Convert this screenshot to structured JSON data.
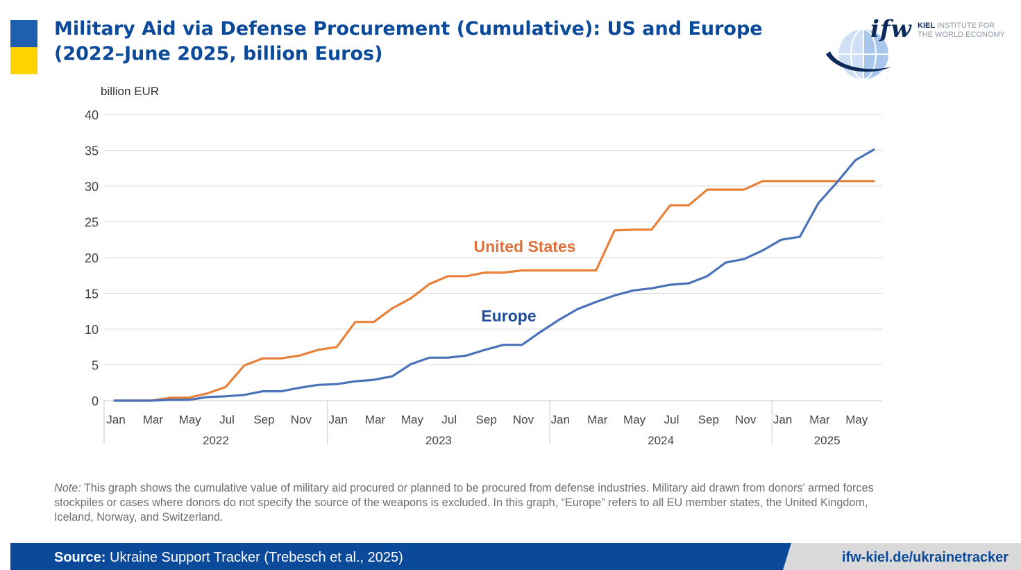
{
  "header": {
    "title_line1": "Military Aid via Defense Procurement (Cumulative): US and Europe",
    "title_line2": "(2022–June 2025, billion Euros)"
  },
  "logo": {
    "wordmark": "ifw",
    "institute_line1": "KIEL",
    "institute_line1_rest": " INSTITUTE FOR",
    "institute_line2": "THE WORLD ECONOMY"
  },
  "colors": {
    "title": "#0b4a9a",
    "us": "#e8803a",
    "us_label": "#e0703a",
    "europe": "#4a72b8",
    "europe_label": "#1f4f9c",
    "grid": "#d9d9d9",
    "flag_blue": "#1f5fb0",
    "flag_yellow": "#ffd200"
  },
  "chart_data": {
    "type": "line",
    "ylabel": "billion EUR",
    "ylim": [
      0,
      40
    ],
    "yticks": [
      0,
      5,
      10,
      15,
      20,
      25,
      30,
      35,
      40
    ],
    "x": [
      "Jan 2022",
      "Feb 2022",
      "Mar 2022",
      "Apr 2022",
      "May 2022",
      "Jun 2022",
      "Jul 2022",
      "Aug 2022",
      "Sep 2022",
      "Oct 2022",
      "Nov 2022",
      "Dec 2022",
      "Jan 2023",
      "Feb 2023",
      "Mar 2023",
      "Apr 2023",
      "May 2023",
      "Jun 2023",
      "Jul 2023",
      "Aug 2023",
      "Sep 2023",
      "Oct 2023",
      "Nov 2023",
      "Dec 2023",
      "Jan 2024",
      "Feb 2024",
      "Mar 2024",
      "Apr 2024",
      "May 2024",
      "Jun 2024",
      "Jul 2024",
      "Aug 2024",
      "Sep 2024",
      "Oct 2024",
      "Nov 2024",
      "Dec 2024",
      "Jan 2025",
      "Feb 2025",
      "Mar 2025",
      "Apr 2025",
      "May 2025",
      "Jun 2025"
    ],
    "x_tick_labels": [
      {
        "label": "Jan",
        "index": 0
      },
      {
        "label": "Mar",
        "index": 2
      },
      {
        "label": "May",
        "index": 4
      },
      {
        "label": "Jul",
        "index": 6
      },
      {
        "label": "Sep",
        "index": 8
      },
      {
        "label": "Nov",
        "index": 10
      },
      {
        "label": "Jan",
        "index": 12
      },
      {
        "label": "Mar",
        "index": 14
      },
      {
        "label": "May",
        "index": 16
      },
      {
        "label": "Jul",
        "index": 18
      },
      {
        "label": "Sep",
        "index": 20
      },
      {
        "label": "Nov",
        "index": 22
      },
      {
        "label": "Jan",
        "index": 24
      },
      {
        "label": "Mar",
        "index": 26
      },
      {
        "label": "May",
        "index": 28
      },
      {
        "label": "Jul",
        "index": 30
      },
      {
        "label": "Sep",
        "index": 32
      },
      {
        "label": "Nov",
        "index": 34
      },
      {
        "label": "Jan",
        "index": 36
      },
      {
        "label": "Mar",
        "index": 38
      },
      {
        "label": "May",
        "index": 40
      }
    ],
    "year_groups": [
      {
        "label": "2022",
        "start": 0,
        "end": 11
      },
      {
        "label": "2023",
        "start": 12,
        "end": 23
      },
      {
        "label": "2024",
        "start": 24,
        "end": 35
      },
      {
        "label": "2025",
        "start": 36,
        "end": 41
      }
    ],
    "series": [
      {
        "name": "United States",
        "values": [
          0,
          0,
          0,
          0.4,
          0.4,
          1.0,
          1.9,
          4.9,
          5.9,
          5.9,
          6.3,
          7.1,
          7.5,
          11.0,
          11.0,
          12.9,
          14.3,
          16.3,
          17.4,
          17.4,
          17.9,
          17.9,
          18.2,
          18.2,
          18.2,
          18.2,
          18.2,
          23.8,
          23.9,
          23.9,
          27.3,
          27.3,
          29.5,
          29.5,
          29.5,
          30.7,
          30.7,
          30.7,
          30.7,
          30.7,
          30.7,
          30.7
        ]
      },
      {
        "name": "Europe",
        "values": [
          0,
          0,
          0,
          0.1,
          0.1,
          0.5,
          0.6,
          0.8,
          1.3,
          1.3,
          1.8,
          2.2,
          2.3,
          2.7,
          2.9,
          3.4,
          5.1,
          6.0,
          6.0,
          6.3,
          7.1,
          7.8,
          7.8,
          9.6,
          11.3,
          12.8,
          13.8,
          14.7,
          15.4,
          15.7,
          16.2,
          16.4,
          17.4,
          19.3,
          19.8,
          21.0,
          22.5,
          22.9,
          27.6,
          30.5,
          33.6,
          35.1
        ]
      }
    ],
    "annotations": [
      {
        "text": "United States",
        "series": "United States"
      },
      {
        "text": "Europe",
        "series": "Europe"
      }
    ]
  },
  "note": {
    "prefix": "Note:",
    "text": " This graph shows the cumulative value of military aid procured or planned to be procured from defense industries. Military aid drawn from donors' armed forces stockpiles or cases where donors do not specify the source of the weapons is excluded. In this graph, “Europe” refers to all EU member states, the United Kingdom, Iceland, Norway, and Switzerland."
  },
  "footer": {
    "source_label": "Source:",
    "source_text": " Ukraine Support Tracker (Trebesch et al., 2025)",
    "url": "ifw-kiel.de/ukrainetracker"
  }
}
